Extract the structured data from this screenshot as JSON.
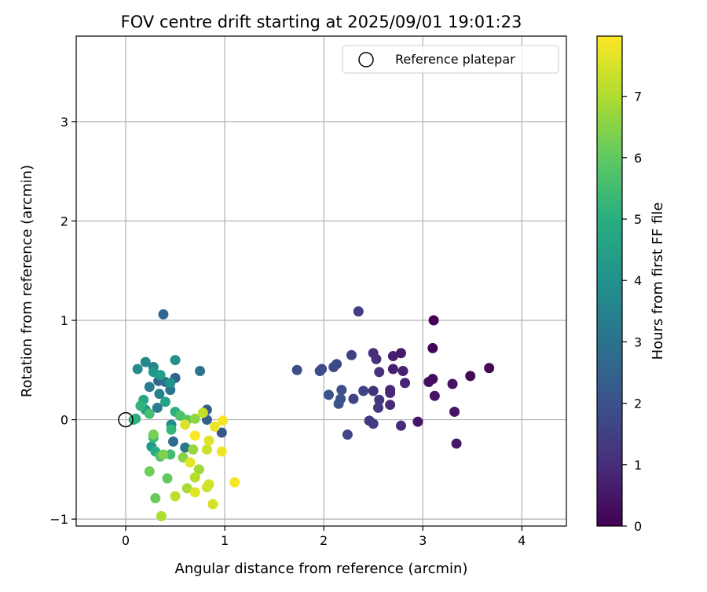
{
  "chart_data": {
    "type": "scatter",
    "title": "FOV centre drift starting at 2025/09/01 19:01:23",
    "xlabel": "Angular distance from reference (arcmin)",
    "ylabel": "Rotation from reference (arcmin)",
    "xlim": [
      -0.5,
      4.45
    ],
    "ylim": [
      -1.07,
      3.86
    ],
    "xticks": [
      0,
      1,
      2,
      3,
      4
    ],
    "xtick_labels": [
      "0",
      "1",
      "2",
      "3",
      "4"
    ],
    "yticks": [
      -1,
      0,
      1,
      2,
      3
    ],
    "ytick_labels": [
      "−1",
      "0",
      "1",
      "2",
      "3"
    ],
    "grid": true,
    "legend": {
      "label": "Reference platepar",
      "placement": "top-right"
    },
    "reference_point": {
      "x": 0,
      "y": 0
    },
    "colorbar": {
      "label": "Hours from first FF file",
      "min": 0,
      "max": 7.98,
      "ticks": [
        0,
        1,
        2,
        3,
        4,
        5,
        6,
        7
      ],
      "tick_labels": [
        "0",
        "1",
        "2",
        "3",
        "4",
        "5",
        "6",
        "7"
      ],
      "colormap": "viridis"
    },
    "points": [
      {
        "x": 3.11,
        "y": 1.0,
        "h": 0.05
      },
      {
        "x": 3.1,
        "y": 0.72,
        "h": 0.1
      },
      {
        "x": 3.67,
        "y": 0.52,
        "h": 0.15
      },
      {
        "x": 3.48,
        "y": 0.44,
        "h": 0.2
      },
      {
        "x": 3.1,
        "y": 0.41,
        "h": 0.25
      },
      {
        "x": 3.06,
        "y": 0.38,
        "h": 0.3
      },
      {
        "x": 3.3,
        "y": 0.36,
        "h": 0.35
      },
      {
        "x": 3.12,
        "y": 0.24,
        "h": 0.4
      },
      {
        "x": 3.32,
        "y": 0.08,
        "h": 0.45
      },
      {
        "x": 2.95,
        "y": -0.02,
        "h": 0.5
      },
      {
        "x": 3.34,
        "y": -0.24,
        "h": 0.55
      },
      {
        "x": 2.78,
        "y": 0.67,
        "h": 0.6
      },
      {
        "x": 2.7,
        "y": 0.64,
        "h": 0.65
      },
      {
        "x": 2.7,
        "y": 0.51,
        "h": 0.7
      },
      {
        "x": 2.8,
        "y": 0.49,
        "h": 0.75
      },
      {
        "x": 2.82,
        "y": 0.37,
        "h": 0.8
      },
      {
        "x": 2.67,
        "y": 0.3,
        "h": 0.85
      },
      {
        "x": 2.67,
        "y": 0.27,
        "h": 0.9
      },
      {
        "x": 2.67,
        "y": 0.15,
        "h": 0.95
      },
      {
        "x": 2.78,
        "y": -0.06,
        "h": 1.0
      },
      {
        "x": 2.5,
        "y": 0.67,
        "h": 1.05
      },
      {
        "x": 2.53,
        "y": 0.61,
        "h": 1.1
      },
      {
        "x": 2.56,
        "y": 0.48,
        "h": 1.15
      },
      {
        "x": 2.5,
        "y": 0.29,
        "h": 1.2
      },
      {
        "x": 2.56,
        "y": 0.2,
        "h": 1.25
      },
      {
        "x": 2.55,
        "y": 0.12,
        "h": 1.3
      },
      {
        "x": 2.46,
        "y": -0.01,
        "h": 1.35
      },
      {
        "x": 2.5,
        "y": -0.04,
        "h": 1.4
      },
      {
        "x": 2.35,
        "y": 1.09,
        "h": 1.45
      },
      {
        "x": 2.28,
        "y": 0.65,
        "h": 1.5
      },
      {
        "x": 2.4,
        "y": 0.29,
        "h": 1.55
      },
      {
        "x": 2.3,
        "y": 0.21,
        "h": 1.6
      },
      {
        "x": 2.24,
        "y": -0.15,
        "h": 1.65
      },
      {
        "x": 2.13,
        "y": 0.56,
        "h": 1.7
      },
      {
        "x": 2.1,
        "y": 0.53,
        "h": 1.75
      },
      {
        "x": 1.98,
        "y": 0.51,
        "h": 1.8
      },
      {
        "x": 1.96,
        "y": 0.49,
        "h": 1.85
      },
      {
        "x": 1.73,
        "y": 0.5,
        "h": 1.9
      },
      {
        "x": 2.18,
        "y": 0.3,
        "h": 1.95
      },
      {
        "x": 2.05,
        "y": 0.25,
        "h": 2.0
      },
      {
        "x": 2.17,
        "y": 0.21,
        "h": 2.05
      },
      {
        "x": 2.15,
        "y": 0.16,
        "h": 2.1
      },
      {
        "x": 0.97,
        "y": -0.13,
        "h": 2.2
      },
      {
        "x": 0.82,
        "y": 0.1,
        "h": 2.3
      },
      {
        "x": 0.82,
        "y": 0.0,
        "h": 2.4
      },
      {
        "x": 0.5,
        "y": 0.42,
        "h": 2.5
      },
      {
        "x": 0.38,
        "y": 1.06,
        "h": 2.6
      },
      {
        "x": 0.33,
        "y": 0.39,
        "h": 2.7
      },
      {
        "x": 0.48,
        "y": -0.22,
        "h": 2.8
      },
      {
        "x": 0.4,
        "y": 0.38,
        "h": 2.9
      },
      {
        "x": 0.75,
        "y": 0.49,
        "h": 3.0
      },
      {
        "x": 0.45,
        "y": 0.3,
        "h": 3.1
      },
      {
        "x": 0.6,
        "y": -0.28,
        "h": 3.2
      },
      {
        "x": 0.32,
        "y": 0.12,
        "h": 3.3
      },
      {
        "x": 0.24,
        "y": 0.33,
        "h": 3.4
      },
      {
        "x": 0.34,
        "y": 0.26,
        "h": 3.5
      },
      {
        "x": 0.28,
        "y": 0.53,
        "h": 3.6
      },
      {
        "x": 0.2,
        "y": 0.58,
        "h": 3.7
      },
      {
        "x": 0.12,
        "y": 0.51,
        "h": 3.8
      },
      {
        "x": 0.46,
        "y": -0.05,
        "h": 3.9
      },
      {
        "x": 0.5,
        "y": 0.6,
        "h": 4.0
      },
      {
        "x": 0.45,
        "y": 0.37,
        "h": 4.1
      },
      {
        "x": 0.28,
        "y": 0.48,
        "h": 4.2
      },
      {
        "x": 0.26,
        "y": -0.27,
        "h": 4.3
      },
      {
        "x": 0.2,
        "y": 0.1,
        "h": 4.4
      },
      {
        "x": 0.35,
        "y": 0.45,
        "h": 4.5
      },
      {
        "x": 0.4,
        "y": 0.18,
        "h": 4.6
      },
      {
        "x": 0.18,
        "y": 0.2,
        "h": 4.7
      },
      {
        "x": 0.1,
        "y": 0.01,
        "h": 4.8
      },
      {
        "x": 0.3,
        "y": -0.32,
        "h": 4.9
      },
      {
        "x": 0.5,
        "y": 0.08,
        "h": 5.0
      },
      {
        "x": 0.08,
        "y": 0.0,
        "h": 5.1
      },
      {
        "x": 0.15,
        "y": 0.14,
        "h": 5.2
      },
      {
        "x": 0.46,
        "y": -0.1,
        "h": 5.3
      },
      {
        "x": 0.28,
        "y": -0.18,
        "h": 5.4
      },
      {
        "x": 0.45,
        "y": -0.35,
        "h": 5.5
      },
      {
        "x": 0.24,
        "y": 0.06,
        "h": 5.6
      },
      {
        "x": 0.55,
        "y": 0.04,
        "h": 5.7
      },
      {
        "x": 0.35,
        "y": -0.37,
        "h": 5.8
      },
      {
        "x": 0.62,
        "y": 0.0,
        "h": 5.9
      },
      {
        "x": 0.42,
        "y": -0.59,
        "h": 6.0
      },
      {
        "x": 0.3,
        "y": -0.79,
        "h": 6.1
      },
      {
        "x": 0.24,
        "y": -0.52,
        "h": 6.2
      },
      {
        "x": 0.28,
        "y": -0.15,
        "h": 6.3
      },
      {
        "x": 0.38,
        "y": -0.35,
        "h": 6.4
      },
      {
        "x": 0.58,
        "y": -0.38,
        "h": 6.5
      },
      {
        "x": 0.7,
        "y": 0.01,
        "h": 6.6
      },
      {
        "x": 0.68,
        "y": -0.3,
        "h": 6.7
      },
      {
        "x": 0.74,
        "y": -0.5,
        "h": 6.8
      },
      {
        "x": 0.62,
        "y": -0.69,
        "h": 6.9
      },
      {
        "x": 0.36,
        "y": -0.97,
        "h": 7.0
      },
      {
        "x": 0.7,
        "y": -0.58,
        "h": 7.1
      },
      {
        "x": 0.5,
        "y": -0.77,
        "h": 7.2
      },
      {
        "x": 0.78,
        "y": 0.07,
        "h": 7.3
      },
      {
        "x": 0.82,
        "y": -0.3,
        "h": 7.35
      },
      {
        "x": 0.82,
        "y": -0.68,
        "h": 7.4
      },
      {
        "x": 0.84,
        "y": -0.65,
        "h": 7.45
      },
      {
        "x": 0.88,
        "y": -0.85,
        "h": 7.5
      },
      {
        "x": 0.6,
        "y": -0.05,
        "h": 7.55
      },
      {
        "x": 0.84,
        "y": -0.21,
        "h": 7.6
      },
      {
        "x": 0.7,
        "y": -0.73,
        "h": 7.65
      },
      {
        "x": 0.65,
        "y": -0.43,
        "h": 7.7
      },
      {
        "x": 0.9,
        "y": -0.07,
        "h": 7.75
      },
      {
        "x": 0.97,
        "y": -0.32,
        "h": 7.8
      },
      {
        "x": 0.98,
        "y": -0.01,
        "h": 7.85
      },
      {
        "x": 1.1,
        "y": -0.63,
        "h": 7.9
      },
      {
        "x": 0.7,
        "y": -0.16,
        "h": 7.95
      }
    ]
  }
}
